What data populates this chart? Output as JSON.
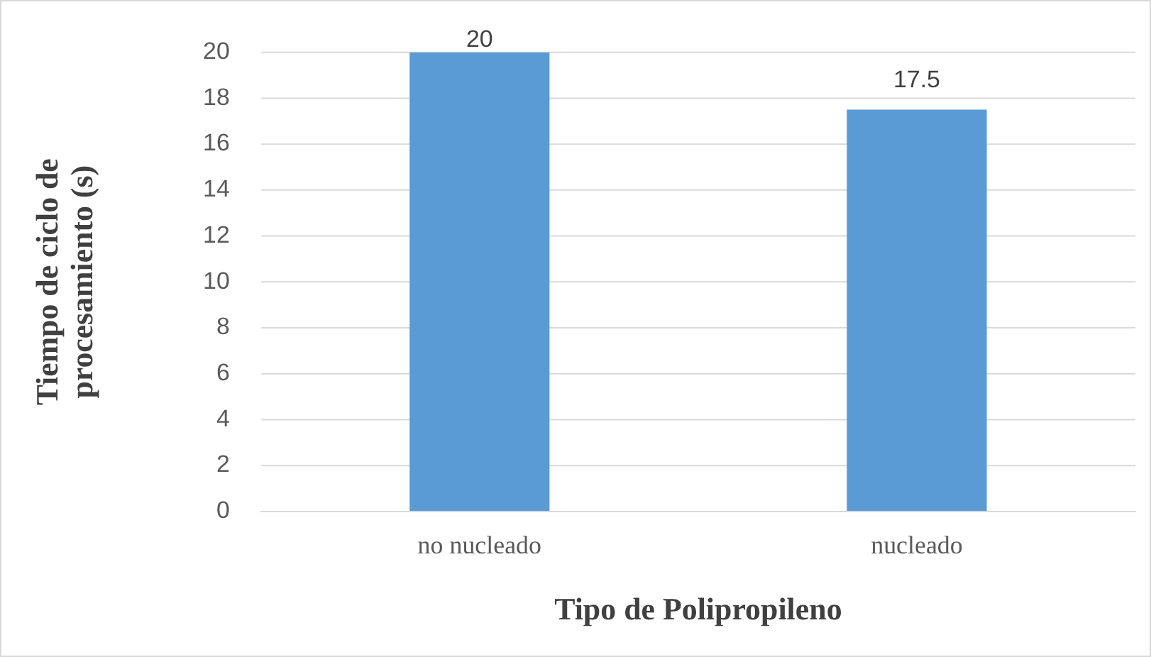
{
  "chart_data": {
    "type": "bar",
    "categories": [
      "no nucleado",
      "nucleado"
    ],
    "values": [
      20,
      17.5
    ],
    "color": "#5b9bd5",
    "ylim": [
      0,
      20
    ],
    "yticks": [
      0,
      2,
      4,
      6,
      8,
      10,
      12,
      14,
      16,
      18,
      20
    ],
    "grid": "y",
    "data_labels": true,
    "xlabel": "Tipo de Polipropileno",
    "ylabel": "Tiempo de ciclo de procesamiento (s)"
  }
}
